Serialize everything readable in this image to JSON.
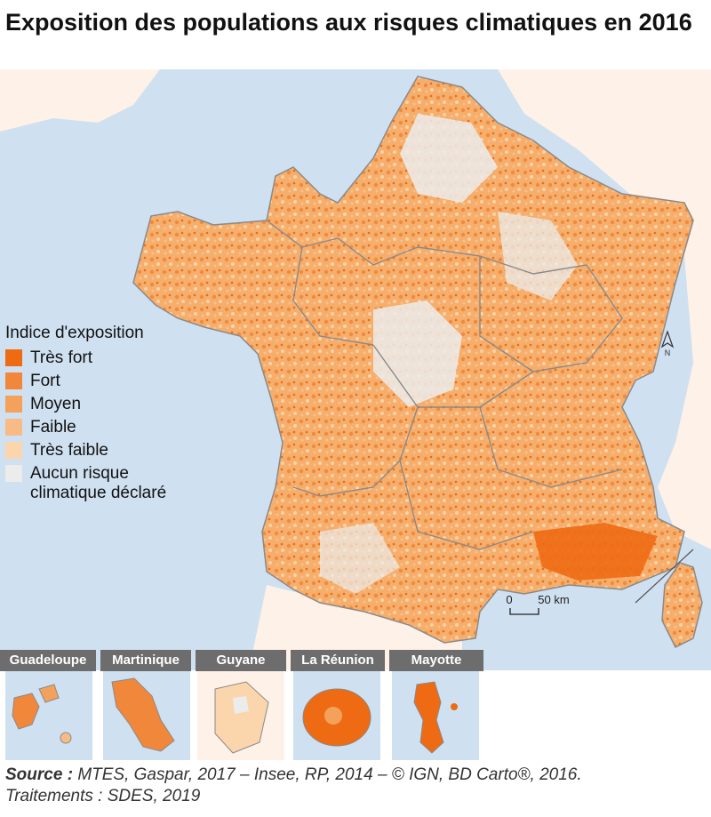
{
  "title": "Exposition des populations aux risques climatiques en 2016",
  "legend": {
    "title": "Indice d'exposition",
    "items": [
      {
        "label": "Très fort",
        "color": "#ee6a13"
      },
      {
        "label": "Fort",
        "color": "#f1873a"
      },
      {
        "label": "Moyen",
        "color": "#f4a15c"
      },
      {
        "label": "Faible",
        "color": "#f8bb85"
      },
      {
        "label": "Très faible",
        "color": "#fbd5ac"
      },
      {
        "label": "Aucun risque climatique déclaré",
        "color": "#ececec"
      }
    ]
  },
  "north_label": "N",
  "scale": {
    "zero": "0",
    "value": "50 km"
  },
  "insets": [
    {
      "name": "Guadeloupe"
    },
    {
      "name": "Martinique"
    },
    {
      "name": "Guyane"
    },
    {
      "name": "La Réunion"
    },
    {
      "name": "Mayotte"
    }
  ],
  "source": {
    "label": "Source :",
    "text": "MTES, Gaspar, 2017 – Insee, RP, 2014 – © IGN, BD Carto®, 2016.",
    "processing": "Traitements : SDES, 2019"
  },
  "colors": {
    "sea": "#cfe0f1",
    "land_neighbor": "#fdf1e8",
    "boundary": "#8a8a8a",
    "inset_header": "#6d6d6d"
  }
}
